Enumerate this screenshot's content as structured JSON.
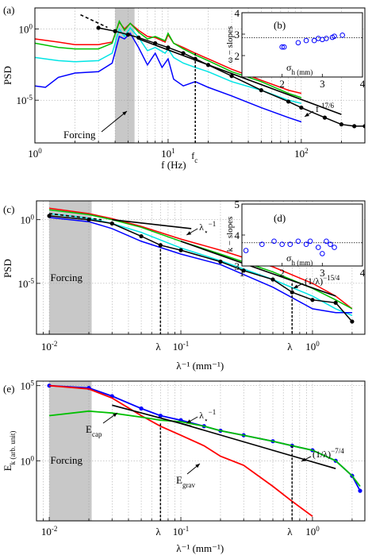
{
  "figure": {
    "panels": [
      {
        "label": "(a)",
        "ylabel": "PSD",
        "xlabel": "f (Hz)",
        "xticks": [
          "10^0",
          "10^1",
          "10^2"
        ],
        "yticks": [
          "10^0",
          "10^-5"
        ],
        "annotations": {
          "forcing": "Forcing",
          "fc": "f_c",
          "slope": "f^-17/6"
        }
      },
      {
        "label": "(c)",
        "ylabel": "PSD",
        "xlabel": "λ⁻¹ (mm⁻¹)",
        "xticks": [
          "10^-2",
          "10^-1",
          "10^0"
        ],
        "yticks": [
          "10^0",
          "10^-5"
        ],
        "annotations": {
          "forcing": "Forcing",
          "lc": "λ_c⁻¹",
          "ld": "λ_d⁻¹",
          "lstar": "λ_⋆⁻¹",
          "slope": "(1/λ)^−15/4"
        }
      },
      {
        "label": "(e)",
        "ylabel": "E_k (arb. unit)",
        "xlabel": "λ⁻¹ (mm⁻¹)",
        "xticks": [
          "10^-2",
          "10^-1",
          "10^0"
        ],
        "yticks": [
          "10^5",
          "10^0"
        ],
        "annotations": {
          "forcing": "Forcing",
          "lc": "λ_c⁻¹",
          "ld": "λ_d⁻¹",
          "lstar": "λ_⋆⁻¹",
          "ecap": "E_cap",
          "egrav": "E_grav",
          "slope": "(1/λ)^−7/4"
        }
      }
    ],
    "insets": [
      {
        "label": "(b)",
        "ylabel": "ω − slopes",
        "xlabel": "σ_h (mm)",
        "xticks": [
          "2",
          "3",
          "4"
        ],
        "yticks": [
          "2",
          "3",
          "4"
        ]
      },
      {
        "label": "(d)",
        "ylabel": "k − slopes",
        "xlabel": "σ_h (mm)",
        "xticks": [
          "1",
          "2",
          "3",
          "4"
        ],
        "yticks": [
          "3",
          "4",
          "5"
        ]
      }
    ]
  },
  "chart_data": [
    {
      "type": "line",
      "panel": "(a)",
      "xscale": "log",
      "yscale": "log",
      "xlim": [
        1,
        300
      ],
      "ylim": [
        1e-08,
        30
      ],
      "forcing_band": [
        4,
        5.6
      ],
      "fc": 16,
      "colors": {
        "red": "#ff0000",
        "green": "#00c000",
        "cyan": "#00e5e5",
        "blue": "#0000ff",
        "black": "#000000"
      },
      "series": [
        {
          "color": "red",
          "x": [
            1,
            1.5,
            2,
            3,
            3.8,
            4.3,
            4.7,
            5.2,
            6,
            7,
            8,
            9.5,
            10,
            11,
            13,
            16,
            20,
            30,
            50,
            80,
            100
          ],
          "y": [
            0.2,
            0.12,
            0.08,
            0.08,
            0.12,
            3,
            1,
            2.5,
            0.8,
            0.3,
            0.25,
            0.12,
            0.4,
            0.1,
            0.05,
            0.02,
            0.008,
            0.0015,
            0.00025,
            5e-05,
            3e-05
          ]
        },
        {
          "color": "green",
          "x": [
            1,
            1.5,
            2,
            3,
            3.8,
            4.3,
            4.7,
            5.2,
            6,
            7,
            8,
            9.5,
            10,
            11,
            13,
            16,
            20,
            30,
            50,
            80,
            100
          ],
          "y": [
            0.1,
            0.05,
            0.04,
            0.04,
            0.1,
            3.5,
            0.8,
            2.5,
            0.6,
            0.2,
            0.3,
            0.15,
            0.5,
            0.1,
            0.04,
            0.015,
            0.006,
            0.001,
            0.0002,
            3e-05,
            1.5e-05
          ]
        },
        {
          "color": "cyan",
          "x": [
            1,
            1.5,
            2,
            3,
            3.8,
            4.3,
            4.7,
            5.2,
            6,
            7,
            8,
            9.5,
            10,
            11,
            13,
            16,
            20,
            30,
            50,
            80,
            100
          ],
          "y": [
            0.01,
            0.006,
            0.005,
            0.006,
            0.02,
            1,
            0.3,
            1.2,
            0.25,
            0.03,
            0.05,
            0.02,
            0.04,
            0.01,
            0.004,
            0.002,
            0.001,
            0.0002,
            5e-05,
            1e-05,
            6e-06
          ]
        },
        {
          "color": "blue",
          "x": [
            1,
            1.2,
            1.5,
            2,
            3,
            3.8,
            4.3,
            4.7,
            5.2,
            6,
            7,
            8,
            9,
            10,
            11,
            13,
            16,
            20,
            30,
            50,
            80,
            100
          ],
          "y": [
            0.0001,
            8e-05,
            0.0004,
            0.0008,
            0.001,
            0.004,
            0.3,
            0.2,
            0.5,
            0.05,
            0.003,
            0.02,
            0.002,
            0.008,
            0.0003,
            0.0001,
            0.0002,
            8e-05,
            2e-05,
            3e-06,
            6e-07,
            3e-07
          ]
        },
        {
          "color": "black",
          "marker": "dot",
          "x": [
            3,
            4,
            5,
            6,
            8,
            10,
            13,
            16,
            20,
            30,
            50,
            80,
            100,
            150,
            200,
            250,
            300
          ],
          "y": [
            1.2,
            0.7,
            0.4,
            0.25,
            0.1,
            0.05,
            0.02,
            0.008,
            0.003,
            0.0005,
            5e-05,
            8e-06,
            3e-06,
            6e-07,
            2e-07,
            1.5e-07,
            1.5e-07
          ]
        }
      ],
      "reference_lines": [
        {
          "style": "dashed",
          "x": [
            2.2,
            3.5
          ],
          "y": [
            10,
            1.3
          ]
        },
        {
          "style": "solid",
          "slope_label": "f^-17/6",
          "x": [
            6,
            200
          ],
          "y": [
            0.2,
            1e-06
          ]
        }
      ]
    },
    {
      "type": "scatter",
      "panel": "(b)",
      "xlim": [
        1,
        4
      ],
      "ylim": [
        1,
        4
      ],
      "hline": 2.833,
      "x": [
        2,
        2.05,
        2.4,
        2.6,
        2.8,
        2.9,
        3.0,
        3.1,
        3.25,
        3.3,
        3.5
      ],
      "y": [
        2.4,
        2.4,
        2.6,
        2.7,
        2.7,
        2.8,
        2.75,
        2.8,
        2.85,
        2.9,
        2.95
      ]
    },
    {
      "type": "line",
      "panel": "(c)",
      "xscale": "log",
      "yscale": "log",
      "xlim": [
        0.008,
        2.5
      ],
      "ylim": [
        1e-09,
        30
      ],
      "forcing_band": [
        0.01,
        0.021
      ],
      "lambda_c": 0.07,
      "lambda_d": 0.7,
      "series": [
        {
          "color": "red",
          "x": [
            0.01,
            0.02,
            0.03,
            0.05,
            0.1,
            0.2,
            0.5,
            1,
            1.5,
            2
          ],
          "y": [
            8,
            3,
            1.2,
            0.3,
            0.03,
            0.004,
            0.0002,
            1e-05,
            1e-06,
            1e-07
          ]
        },
        {
          "color": "green",
          "x": [
            0.01,
            0.02,
            0.03,
            0.05,
            0.1,
            0.2,
            0.5,
            1,
            1.5,
            2
          ],
          "y": [
            6,
            2.5,
            1,
            0.25,
            0.02,
            0.002,
            8e-05,
            4e-06,
            5e-07,
            1e-07
          ]
        },
        {
          "color": "cyan",
          "x": [
            0.01,
            0.02,
            0.03,
            0.05,
            0.1,
            0.2,
            0.5,
            1,
            1.5,
            2
          ],
          "y": [
            3,
            1.3,
            0.5,
            0.1,
            0.006,
            0.0006,
            2e-05,
            1e-06,
            1e-07,
            3e-08
          ]
        },
        {
          "color": "blue",
          "x": [
            0.01,
            0.02,
            0.03,
            0.05,
            0.1,
            0.2,
            0.5,
            1,
            1.5,
            2
          ],
          "y": [
            1.5,
            0.7,
            0.2,
            0.02,
            0.002,
            0.0003,
            5e-06,
            1e-07,
            5e-08,
            5e-08
          ]
        },
        {
          "color": "black",
          "marker": "dot",
          "x": [
            0.01,
            0.02,
            0.03,
            0.05,
            0.07,
            0.1,
            0.2,
            0.3,
            0.5,
            0.7,
            1,
            1.5,
            2
          ],
          "y": [
            2,
            1,
            0.5,
            0.05,
            0.01,
            0.004,
            0.0005,
            0.0001,
            2e-05,
            2e-06,
            5e-07,
            3e-07,
            1e-08
          ]
        }
      ],
      "reference_lines": [
        {
          "style": "dashed",
          "x": [
            0.01,
            0.025
          ],
          "y": [
            3,
            1
          ]
        },
        {
          "style": "solid",
          "slope_label": "λ_⋆⁻¹",
          "x": [
            0.03,
            0.12
          ],
          "y": [
            1,
            0.2
          ]
        },
        {
          "style": "solid",
          "slope_label": "(1/λ)^−15/4",
          "x": [
            0.1,
            1.5
          ],
          "y": [
            0.02,
            1e-06
          ]
        }
      ]
    },
    {
      "type": "scatter",
      "panel": "(d)",
      "xlim": [
        1,
        4
      ],
      "ylim": [
        3,
        5
      ],
      "hline": 3.75,
      "x": [
        1.1,
        1.5,
        1.8,
        2.0,
        2.2,
        2.4,
        2.6,
        2.7,
        2.9,
        3.0,
        3.1,
        3.2,
        3.3
      ],
      "y": [
        3.5,
        3.7,
        3.8,
        3.7,
        3.7,
        3.8,
        3.7,
        3.8,
        3.6,
        3.4,
        3.8,
        3.7,
        3.6
      ]
    },
    {
      "type": "line",
      "panel": "(e)",
      "xscale": "log",
      "yscale": "log",
      "xlim": [
        0.008,
        2.5
      ],
      "ylim": [
        0.0001,
        200000
      ],
      "forcing_band": [
        0.01,
        0.021
      ],
      "lambda_c": 0.07,
      "lambda_d": 0.7,
      "series": [
        {
          "color": "blue",
          "marker": "dot",
          "x": [
            0.01,
            0.02,
            0.03,
            0.05,
            0.07,
            0.1,
            0.15,
            0.2,
            0.3,
            0.5,
            0.7,
            1,
            1.5,
            2,
            2.3
          ],
          "y": [
            100000,
            70000,
            20000,
            3000,
            1000,
            500,
            200,
            100,
            50,
            20,
            10,
            5,
            1,
            0.1,
            0.01
          ]
        },
        {
          "color": "red",
          "label": "E_grav",
          "x": [
            0.01,
            0.02,
            0.03,
            0.05,
            0.07,
            0.1,
            0.15,
            0.2,
            0.3,
            0.5,
            0.7,
            1
          ],
          "y": [
            100000,
            60000,
            15000,
            1000,
            200,
            50,
            10,
            2,
            0.5,
            0.02,
            0.002,
            0.0002
          ]
        },
        {
          "color": "green",
          "label": "E_cap",
          "x": [
            0.01,
            0.02,
            0.03,
            0.05,
            0.07,
            0.1,
            0.15,
            0.2,
            0.3,
            0.5,
            0.7,
            1,
            1.5,
            2,
            2.3
          ],
          "y": [
            1000,
            2000,
            1500,
            800,
            500,
            400,
            200,
            100,
            50,
            20,
            10,
            5,
            1,
            0.1,
            0.02
          ]
        }
      ],
      "reference_lines": [
        {
          "style": "solid",
          "slope_label": "λ_⋆⁻¹",
          "x": [
            0.03,
            0.12
          ],
          "y": [
            5000,
            200
          ]
        },
        {
          "style": "solid",
          "slope_label": "(1/λ)^−7/4",
          "x": [
            0.1,
            1.5
          ],
          "y": [
            300,
            0.3
          ]
        }
      ]
    }
  ]
}
